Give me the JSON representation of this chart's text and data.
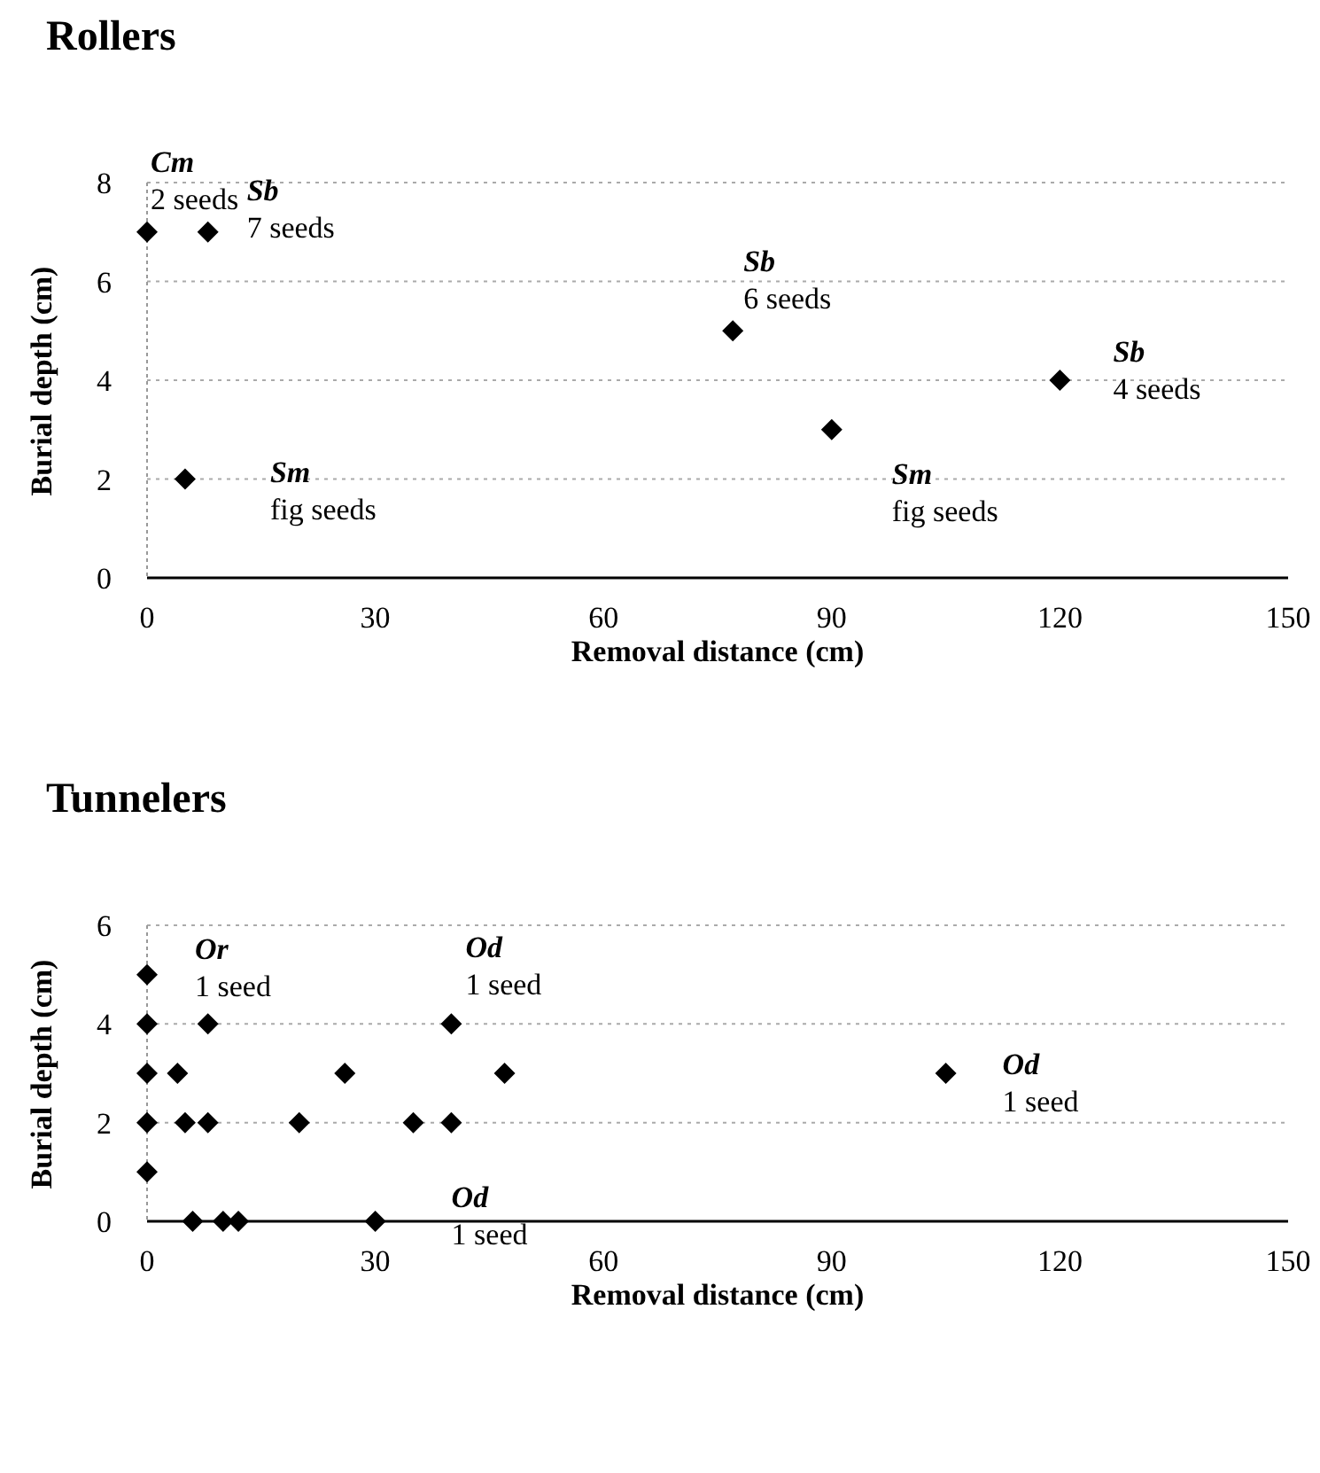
{
  "chart_data": [
    {
      "type": "scatter",
      "title": "Rollers",
      "xlabel": "Removal distance (cm)",
      "ylabel": "Burial depth (cm)",
      "x": [
        0,
        8,
        5,
        77,
        90,
        120
      ],
      "series": [
        {
          "color": "#000000",
          "values": [
            7,
            7,
            2,
            5,
            3,
            4
          ]
        }
      ],
      "xlim": [
        0,
        150
      ],
      "xticks": [
        0,
        30,
        60,
        90,
        120,
        150
      ],
      "ylim": [
        0,
        8
      ],
      "yticks": [
        0,
        2,
        4,
        6,
        8
      ],
      "grid": "y",
      "marker": "diamond",
      "annotations": [
        {
          "text": "Cm\n2 seeds",
          "x": 0,
          "y": 7
        },
        {
          "text": "Sb\n7 seeds",
          "x": 8,
          "y": 7
        },
        {
          "text": "Sb\n6 seeds",
          "x": 77,
          "y": 5
        },
        {
          "text": "Sb\n4 seeds",
          "x": 120,
          "y": 4
        },
        {
          "text": "Sm\nfig seeds",
          "x": 5,
          "y": 2
        },
        {
          "text": "Sm\nfig seeds",
          "x": 90,
          "y": 3
        }
      ]
    },
    {
      "type": "scatter",
      "title": "Tunnelers",
      "xlabel": "Removal distance (cm)",
      "ylabel": "Burial depth (cm)",
      "x": [
        0,
        0,
        8,
        40,
        0,
        4,
        26,
        47,
        105,
        0,
        5,
        8,
        20,
        35,
        40,
        0,
        6,
        10,
        12,
        30
      ],
      "series": [
        {
          "color": "#000000",
          "values": [
            5,
            4,
            4,
            4,
            3,
            3,
            3,
            3,
            3,
            2,
            2,
            2,
            2,
            2,
            2,
            1,
            0,
            0,
            0,
            0
          ]
        }
      ],
      "xlim": [
        0,
        150
      ],
      "xticks": [
        0,
        30,
        60,
        90,
        120,
        150
      ],
      "ylim": [
        0,
        6
      ],
      "yticks": [
        0,
        2,
        4,
        6
      ],
      "grid": "y",
      "marker": "diamond",
      "annotations": [
        {
          "text": "Or\n1 seed",
          "x": 0,
          "y": 5
        },
        {
          "text": "Od\n1 seed",
          "x": 40,
          "y": 4
        },
        {
          "text": "Od\n1 seed",
          "x": 105,
          "y": 3
        },
        {
          "text": "Od\n1 seed",
          "x": 30,
          "y": 0
        }
      ]
    }
  ]
}
